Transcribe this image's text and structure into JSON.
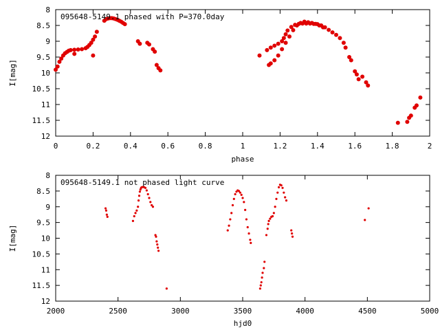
{
  "chart_data": [
    {
      "type": "scatter",
      "title": "095648-5149.1 phased with P=370.0day",
      "xlabel": "phase",
      "ylabel": "I[mag]",
      "xlim": [
        0,
        2
      ],
      "ylim": [
        12,
        8
      ],
      "y_inverted": true,
      "grid": false,
      "xticks": [
        "0",
        "0.2",
        "0.4",
        "0.6",
        "0.8",
        "1",
        "1.2",
        "1.4",
        "1.6",
        "1.8",
        "2"
      ],
      "yticks": [
        "8",
        "8.5",
        "9",
        "9.5",
        "10",
        "10.5",
        "11",
        "11.5",
        "12"
      ],
      "marker_color": "#e00000",
      "series": [
        {
          "points": [
            [
              0.0,
              9.9
            ],
            [
              0.01,
              9.8
            ],
            [
              0.02,
              9.65
            ],
            [
              0.03,
              9.55
            ],
            [
              0.04,
              9.45
            ],
            [
              0.05,
              9.38
            ],
            [
              0.06,
              9.34
            ],
            [
              0.07,
              9.3
            ],
            [
              0.08,
              9.28
            ],
            [
              0.1,
              9.27
            ],
            [
              0.12,
              9.26
            ],
            [
              0.14,
              9.25
            ],
            [
              0.16,
              9.22
            ],
            [
              0.17,
              9.18
            ],
            [
              0.18,
              9.12
            ],
            [
              0.19,
              9.05
            ],
            [
              0.2,
              8.95
            ],
            [
              0.21,
              8.85
            ],
            [
              0.22,
              8.7
            ],
            [
              0.2,
              9.45
            ],
            [
              0.1,
              9.4
            ],
            [
              0.26,
              8.35
            ],
            [
              0.27,
              8.3
            ],
            [
              0.28,
              8.28
            ],
            [
              0.29,
              8.27
            ],
            [
              0.3,
              8.27
            ],
            [
              0.31,
              8.28
            ],
            [
              0.32,
              8.3
            ],
            [
              0.33,
              8.32
            ],
            [
              0.34,
              8.35
            ],
            [
              0.35,
              8.38
            ],
            [
              0.36,
              8.42
            ],
            [
              0.37,
              8.46
            ],
            [
              0.44,
              9.0
            ],
            [
              0.45,
              9.08
            ],
            [
              0.49,
              9.05
            ],
            [
              0.5,
              9.1
            ],
            [
              0.52,
              9.25
            ],
            [
              0.53,
              9.33
            ],
            [
              0.54,
              9.75
            ],
            [
              0.55,
              9.85
            ],
            [
              0.56,
              9.92
            ],
            [
              1.09,
              9.45
            ],
            [
              1.13,
              9.28
            ],
            [
              1.15,
              9.2
            ],
            [
              1.17,
              9.14
            ],
            [
              1.19,
              9.08
            ],
            [
              1.21,
              9.0
            ],
            [
              1.22,
              8.9
            ],
            [
              1.23,
              8.78
            ],
            [
              1.24,
              8.66
            ],
            [
              1.26,
              8.55
            ],
            [
              1.28,
              8.48
            ],
            [
              1.3,
              8.45
            ],
            [
              1.32,
              8.44
            ],
            [
              1.34,
              8.44
            ],
            [
              1.36,
              8.44
            ],
            [
              1.38,
              8.45
            ],
            [
              1.4,
              8.46
            ],
            [
              1.42,
              8.5
            ],
            [
              1.44,
              8.56
            ],
            [
              1.46,
              8.64
            ],
            [
              1.48,
              8.72
            ],
            [
              1.5,
              8.8
            ],
            [
              1.52,
              8.9
            ],
            [
              1.54,
              9.05
            ],
            [
              1.55,
              9.2
            ],
            [
              1.57,
              9.5
            ],
            [
              1.58,
              9.6
            ],
            [
              1.6,
              9.95
            ],
            [
              1.61,
              10.05
            ],
            [
              1.62,
              10.2
            ],
            [
              1.64,
              10.12
            ],
            [
              1.66,
              10.3
            ],
            [
              1.67,
              10.4
            ],
            [
              1.14,
              9.75
            ],
            [
              1.15,
              9.7
            ],
            [
              1.17,
              9.6
            ],
            [
              1.19,
              9.45
            ],
            [
              1.21,
              9.25
            ],
            [
              1.23,
              9.05
            ],
            [
              1.25,
              8.85
            ],
            [
              1.27,
              8.65
            ],
            [
              1.29,
              8.5
            ],
            [
              1.31,
              8.42
            ],
            [
              1.33,
              8.38
            ],
            [
              1.35,
              8.4
            ],
            [
              1.37,
              8.42
            ],
            [
              1.39,
              8.45
            ],
            [
              1.41,
              8.5
            ],
            [
              1.43,
              8.56
            ],
            [
              1.83,
              11.58
            ],
            [
              1.88,
              11.55
            ],
            [
              1.89,
              11.42
            ],
            [
              1.9,
              11.35
            ],
            [
              1.92,
              11.1
            ],
            [
              1.93,
              11.03
            ],
            [
              1.95,
              10.78
            ]
          ]
        }
      ]
    },
    {
      "type": "scatter",
      "title": "095648-5149.1 not phased light curve",
      "xlabel": "hjd0",
      "ylabel": "I[mag]",
      "xlim": [
        2000,
        5000
      ],
      "ylim": [
        12,
        8
      ],
      "y_inverted": true,
      "grid": false,
      "xticks": [
        "2000",
        "2500",
        "3000",
        "3500",
        "4000",
        "4500",
        "5000"
      ],
      "yticks": [
        "8",
        "8.5",
        "9",
        "9.5",
        "10",
        "10.5",
        "11",
        "11.5",
        "12"
      ],
      "marker_color": "#e00000",
      "series": [
        {
          "points": [
            [
              2400,
              9.05
            ],
            [
              2405,
              9.12
            ],
            [
              2410,
              9.25
            ],
            [
              2415,
              9.32
            ],
            [
              2620,
              9.45
            ],
            [
              2630,
              9.3
            ],
            [
              2640,
              9.2
            ],
            [
              2650,
              9.12
            ],
            [
              2660,
              9.0
            ],
            [
              2665,
              8.8
            ],
            [
              2670,
              8.65
            ],
            [
              2675,
              8.52
            ],
            [
              2680,
              8.45
            ],
            [
              2685,
              8.4
            ],
            [
              2690,
              8.38
            ],
            [
              2700,
              8.37
            ],
            [
              2710,
              8.38
            ],
            [
              2720,
              8.4
            ],
            [
              2730,
              8.48
            ],
            [
              2740,
              8.6
            ],
            [
              2750,
              8.72
            ],
            [
              2760,
              8.85
            ],
            [
              2770,
              8.95
            ],
            [
              2780,
              9.0
            ],
            [
              2800,
              9.9
            ],
            [
              2805,
              9.95
            ],
            [
              2810,
              10.1
            ],
            [
              2815,
              10.2
            ],
            [
              2820,
              10.3
            ],
            [
              2825,
              10.4
            ],
            [
              2890,
              11.6
            ],
            [
              3380,
              9.75
            ],
            [
              3390,
              9.6
            ],
            [
              3400,
              9.4
            ],
            [
              3410,
              9.2
            ],
            [
              3420,
              8.95
            ],
            [
              3430,
              8.75
            ],
            [
              3440,
              8.6
            ],
            [
              3450,
              8.52
            ],
            [
              3460,
              8.48
            ],
            [
              3470,
              8.5
            ],
            [
              3480,
              8.55
            ],
            [
              3490,
              8.62
            ],
            [
              3500,
              8.72
            ],
            [
              3510,
              8.85
            ],
            [
              3520,
              9.1
            ],
            [
              3530,
              9.4
            ],
            [
              3540,
              9.65
            ],
            [
              3550,
              9.85
            ],
            [
              3560,
              10.05
            ],
            [
              3565,
              10.15
            ],
            [
              3640,
              11.6
            ],
            [
              3645,
              11.5
            ],
            [
              3650,
              11.4
            ],
            [
              3655,
              11.25
            ],
            [
              3660,
              11.1
            ],
            [
              3670,
              10.95
            ],
            [
              3675,
              10.75
            ],
            [
              3690,
              9.9
            ],
            [
              3700,
              9.7
            ],
            [
              3705,
              9.55
            ],
            [
              3710,
              9.45
            ],
            [
              3720,
              9.38
            ],
            [
              3730,
              9.32
            ],
            [
              3740,
              9.3
            ],
            [
              3750,
              9.2
            ],
            [
              3760,
              9.0
            ],
            [
              3770,
              8.75
            ],
            [
              3780,
              8.55
            ],
            [
              3790,
              8.38
            ],
            [
              3800,
              8.3
            ],
            [
              3810,
              8.32
            ],
            [
              3820,
              8.4
            ],
            [
              3830,
              8.55
            ],
            [
              3840,
              8.7
            ],
            [
              3850,
              8.8
            ],
            [
              3890,
              9.75
            ],
            [
              3895,
              9.85
            ],
            [
              3900,
              9.95
            ],
            [
              4480,
              9.42
            ],
            [
              4510,
              9.05
            ]
          ]
        }
      ]
    }
  ]
}
